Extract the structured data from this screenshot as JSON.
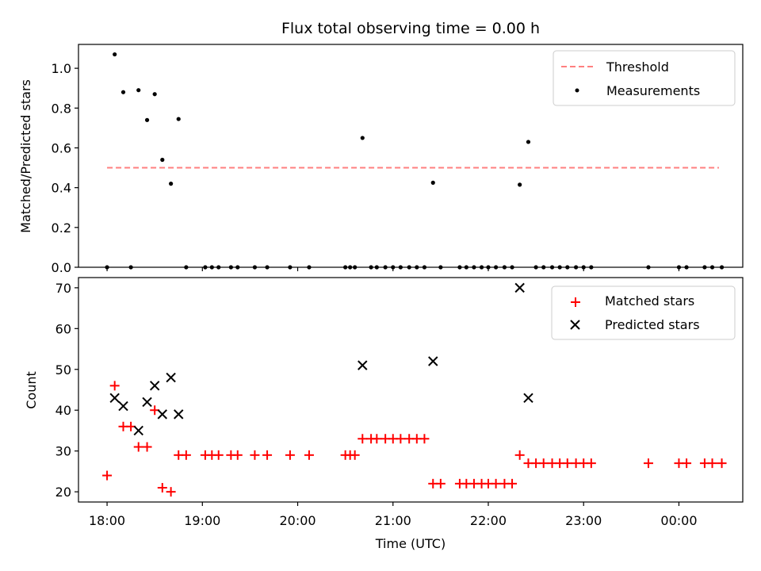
{
  "chart_data": [
    {
      "type": "scatter",
      "title": "Flux total observing time = 0.00 h",
      "xlabel": "",
      "ylabel": "Matched/Predicted stars",
      "xlim": [
        17.7,
        24.67
      ],
      "ylim": [
        0.0,
        1.12
      ],
      "yticks": [
        0.0,
        0.2,
        0.4,
        0.6,
        0.8,
        1.0
      ],
      "ytick_labels": [
        "0.0",
        "0.2",
        "0.4",
        "0.6",
        "0.8",
        "1.0"
      ],
      "xticks": [
        18,
        19,
        20,
        21,
        22,
        23,
        24
      ],
      "legend": {
        "position": "top-right",
        "entries": [
          "Threshold",
          "Measurements"
        ]
      },
      "threshold": {
        "name": "Threshold",
        "value": 0.5,
        "x_range": [
          18.0,
          24.42
        ],
        "color": "#ff7f7f"
      },
      "series": [
        {
          "name": "Measurements",
          "color": "#000000",
          "x": [
            18.0,
            18.08,
            18.17,
            18.25,
            18.33,
            18.42,
            18.5,
            18.58,
            18.67,
            18.75,
            18.83,
            19.03,
            19.1,
            19.17,
            19.3,
            19.37,
            19.55,
            19.68,
            19.92,
            20.12,
            20.5,
            20.55,
            20.6,
            20.68,
            20.77,
            20.83,
            20.92,
            21.0,
            21.08,
            21.17,
            21.25,
            21.33,
            21.42,
            21.5,
            21.7,
            21.77,
            21.85,
            21.93,
            22.0,
            22.08,
            22.17,
            22.25,
            22.33,
            22.42,
            22.5,
            22.58,
            22.67,
            22.75,
            22.83,
            22.92,
            23.0,
            23.08,
            23.68,
            24.0,
            24.08,
            24.27,
            24.35,
            24.45
          ],
          "y": [
            0.0,
            1.07,
            0.88,
            0.0,
            0.89,
            0.74,
            0.87,
            0.54,
            0.42,
            0.745,
            0.0,
            0.0,
            0.0,
            0.0,
            0.0,
            0.0,
            0.0,
            0.0,
            0.0,
            0.0,
            0.0,
            0.0,
            0.0,
            0.65,
            0.0,
            0.0,
            0.0,
            0.0,
            0.0,
            0.0,
            0.0,
            0.0,
            0.425,
            0.0,
            0.0,
            0.0,
            0.0,
            0.0,
            0.0,
            0.0,
            0.0,
            0.0,
            0.415,
            0.63,
            0.0,
            0.0,
            0.0,
            0.0,
            0.0,
            0.0,
            0.0,
            0.0,
            0.0,
            0.0,
            0.0,
            0.0,
            0.0,
            0.0
          ]
        }
      ]
    },
    {
      "type": "scatter",
      "title": "",
      "xlabel": "Time (UTC)",
      "ylabel": "Count",
      "xlim": [
        17.7,
        24.67
      ],
      "ylim": [
        17.5,
        72.5
      ],
      "yticks": [
        20,
        30,
        40,
        50,
        60,
        70
      ],
      "ytick_labels": [
        "20",
        "30",
        "40",
        "50",
        "60",
        "70"
      ],
      "xticks": [
        18,
        19,
        20,
        21,
        22,
        23,
        24
      ],
      "xtick_labels": [
        "18:00",
        "19:00",
        "20:00",
        "21:00",
        "22:00",
        "23:00",
        "00:00"
      ],
      "legend": {
        "position": "top-right",
        "entries": [
          "Matched stars",
          "Predicted stars"
        ]
      },
      "series": [
        {
          "name": "Matched stars",
          "marker": "plus",
          "color": "#ff0000",
          "x": [
            18.0,
            18.08,
            18.17,
            18.25,
            18.33,
            18.42,
            18.5,
            18.58,
            18.67,
            18.75,
            18.83,
            19.03,
            19.1,
            19.17,
            19.3,
            19.37,
            19.55,
            19.68,
            19.92,
            20.12,
            20.5,
            20.55,
            20.6,
            20.68,
            20.77,
            20.83,
            20.92,
            21.0,
            21.08,
            21.17,
            21.25,
            21.33,
            21.42,
            21.5,
            21.7,
            21.77,
            21.85,
            21.93,
            22.0,
            22.08,
            22.17,
            22.25,
            22.33,
            22.42,
            22.5,
            22.58,
            22.67,
            22.75,
            22.83,
            22.92,
            23.0,
            23.08,
            23.68,
            24.0,
            24.08,
            24.27,
            24.35,
            24.45
          ],
          "y": [
            24,
            46,
            36,
            36,
            31,
            31,
            40,
            21,
            20,
            29,
            29,
            29,
            29,
            29,
            29,
            29,
            29,
            29,
            29,
            29,
            29,
            29,
            29,
            33,
            33,
            33,
            33,
            33,
            33,
            33,
            33,
            33,
            22,
            22,
            22,
            22,
            22,
            22,
            22,
            22,
            22,
            22,
            29,
            27,
            27,
            27,
            27,
            27,
            27,
            27,
            27,
            27,
            27,
            27,
            27,
            27,
            27,
            27
          ]
        },
        {
          "name": "Predicted stars",
          "marker": "x",
          "color": "#000000",
          "x": [
            18.08,
            18.17,
            18.33,
            18.42,
            18.5,
            18.58,
            18.67,
            18.75,
            20.68,
            21.42,
            22.33,
            22.42
          ],
          "y": [
            43,
            41,
            35,
            42,
            46,
            39,
            48,
            39,
            51,
            52,
            70,
            43
          ]
        }
      ]
    }
  ]
}
